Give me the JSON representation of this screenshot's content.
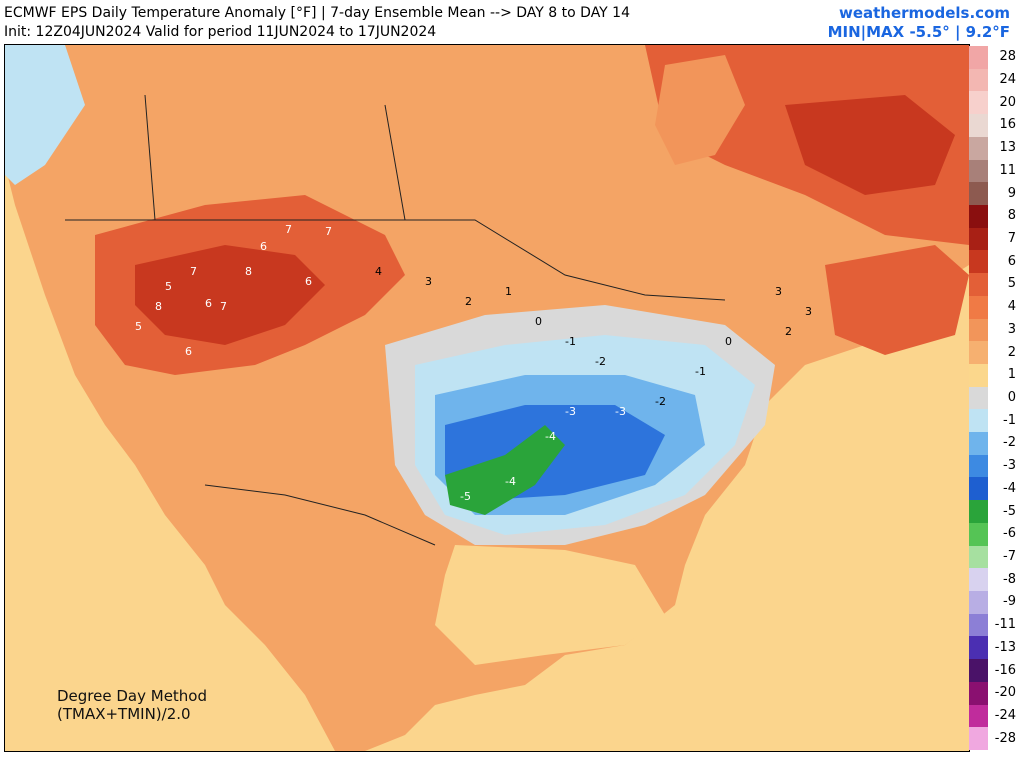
{
  "header": {
    "title": "ECMWF EPS Daily Temperature Anomaly [°F] | 7-day Ensemble Mean --> DAY 8 to DAY 14",
    "subtitle": "Init: 12Z04JUN2024 Valid for period 11JUN2024 to 17JUN2024",
    "site": "weathermodels.com",
    "minmax": "MIN|MAX -5.5° | 9.2°F"
  },
  "map": {
    "method_line1": "Degree Day Method",
    "method_line2": "(TMAX+TMIN)/2.0",
    "colors": {
      "ocean": "#fbd58d",
      "warm_light": "#f7c27d",
      "warm_mid": "#f2955a",
      "warm_high": "#e35f37",
      "warm_max": "#c8381f",
      "neutral": "#d9d9d9",
      "cool_light": "#bfe3f3",
      "cool_mid": "#6fb4ec",
      "cool_high": "#2d74dc",
      "cool_max": "#2aa43a"
    },
    "anomaly_labels": [
      {
        "v": "7"
      },
      {
        "v": "6"
      },
      {
        "v": "8"
      },
      {
        "v": "7"
      },
      {
        "v": "6"
      },
      {
        "v": "5"
      },
      {
        "v": "6"
      },
      {
        "v": "7"
      },
      {
        "v": "7"
      },
      {
        "v": "5"
      },
      {
        "v": "6"
      },
      {
        "v": "8"
      },
      {
        "v": "4"
      },
      {
        "v": "3"
      },
      {
        "v": "2"
      },
      {
        "v": "1"
      },
      {
        "v": "0"
      },
      {
        "v": "-1"
      },
      {
        "v": "-2"
      },
      {
        "v": "-3"
      },
      {
        "v": "-4"
      },
      {
        "v": "-5"
      },
      {
        "v": "-4"
      },
      {
        "v": "-3"
      },
      {
        "v": "-2"
      },
      {
        "v": "-1"
      },
      {
        "v": "0"
      },
      {
        "v": "3"
      },
      {
        "v": "2"
      },
      {
        "v": "3"
      }
    ]
  },
  "colorbar": {
    "steps": [
      {
        "label": "28",
        "color": "#f1a6a6"
      },
      {
        "label": "24",
        "color": "#f3b7b2"
      },
      {
        "label": "20",
        "color": "#f7d0cc"
      },
      {
        "label": "16",
        "color": "#ead8d2"
      },
      {
        "label": "13",
        "color": "#c9a7a0"
      },
      {
        "label": "11",
        "color": "#a88079"
      },
      {
        "label": "9",
        "color": "#8d5a50"
      },
      {
        "label": "8",
        "color": "#8a0f0f"
      },
      {
        "label": "7",
        "color": "#a82015"
      },
      {
        "label": "6",
        "color": "#c8381f"
      },
      {
        "label": "5",
        "color": "#e35f37"
      },
      {
        "label": "4",
        "color": "#f07a45"
      },
      {
        "label": "3",
        "color": "#f2955a"
      },
      {
        "label": "2",
        "color": "#f6b070"
      },
      {
        "label": "1",
        "color": "#fbd78c"
      },
      {
        "label": "0",
        "color": "#d9d9d9"
      },
      {
        "label": "-1",
        "color": "#bfe3f3"
      },
      {
        "label": "-2",
        "color": "#6fb4ec"
      },
      {
        "label": "-3",
        "color": "#3d8ae2"
      },
      {
        "label": "-4",
        "color": "#1e5fd0"
      },
      {
        "label": "-5",
        "color": "#2aa43a"
      },
      {
        "label": "-6",
        "color": "#55c455"
      },
      {
        "label": "-7",
        "color": "#a6e0a0"
      },
      {
        "label": "-8",
        "color": "#d8d2ef"
      },
      {
        "label": "-9",
        "color": "#b8aee4"
      },
      {
        "label": "-11",
        "color": "#8c7fd6"
      },
      {
        "label": "-13",
        "color": "#4b2fb2"
      },
      {
        "label": "-16",
        "color": "#4a1268"
      },
      {
        "label": "-20",
        "color": "#8a1070"
      },
      {
        "label": "-24",
        "color": "#c02c9c"
      },
      {
        "label": "-28",
        "color": "#f0a8e0"
      }
    ]
  }
}
